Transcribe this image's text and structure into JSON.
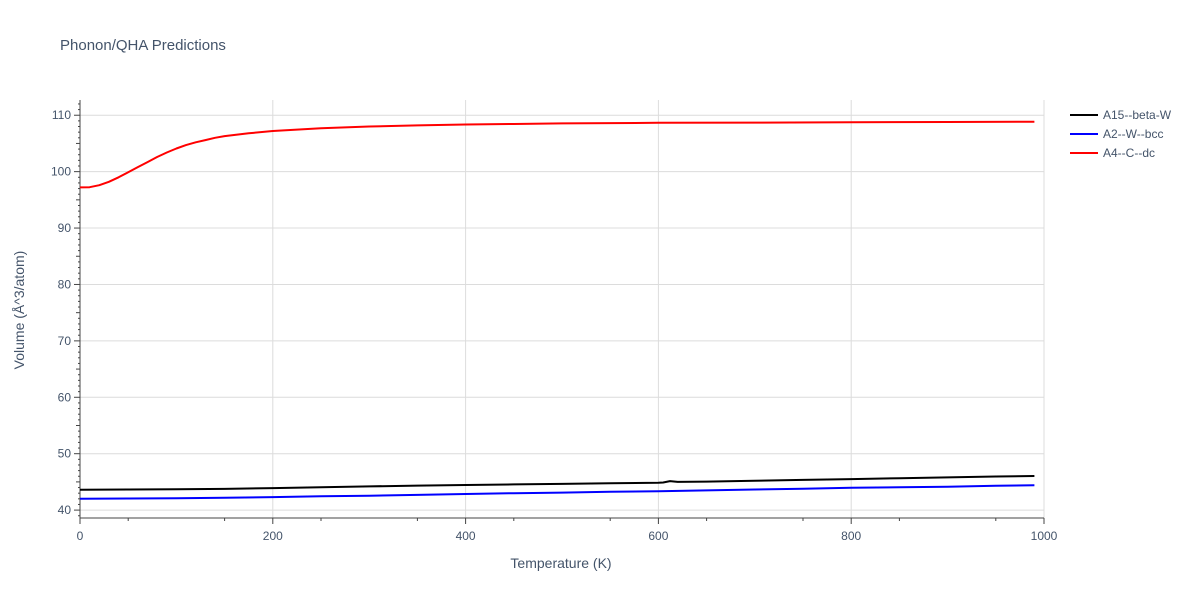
{
  "chart_data": {
    "type": "line",
    "title": "Phonon/QHA Predictions",
    "xlabel": "Temperature (K)",
    "ylabel": "Volume (Å^3/atom)",
    "xlim": [
      0,
      1000
    ],
    "ylim": [
      38.6,
      112.7
    ],
    "xticks": [
      0,
      200,
      400,
      600,
      800,
      1000
    ],
    "yticks": [
      40,
      50,
      60,
      70,
      80,
      90,
      100,
      110
    ],
    "grid": true,
    "legend_position": "top-right",
    "series": [
      {
        "name": "A15--beta-W",
        "color": "#000000",
        "x": [
          0,
          50,
          100,
          150,
          200,
          250,
          300,
          350,
          400,
          450,
          500,
          550,
          600,
          605,
          612,
          620,
          650,
          700,
          750,
          800,
          850,
          900,
          950,
          990
        ],
        "y": [
          43.6,
          43.65,
          43.7,
          43.75,
          43.9,
          44.05,
          44.2,
          44.35,
          44.45,
          44.55,
          44.65,
          44.75,
          44.85,
          44.9,
          45.15,
          45.0,
          45.05,
          45.2,
          45.35,
          45.5,
          45.65,
          45.8,
          45.95,
          46.05
        ]
      },
      {
        "name": "A2--W--bcc",
        "color": "#0000ff",
        "x": [
          0,
          50,
          100,
          150,
          200,
          250,
          300,
          350,
          400,
          450,
          500,
          550,
          600,
          650,
          700,
          750,
          800,
          850,
          900,
          950,
          990
        ],
        "y": [
          42.0,
          42.05,
          42.1,
          42.2,
          42.3,
          42.45,
          42.55,
          42.7,
          42.85,
          43.0,
          43.1,
          43.25,
          43.35,
          43.5,
          43.65,
          43.8,
          43.95,
          44.05,
          44.15,
          44.3,
          44.4
        ]
      },
      {
        "name": "A4--C--dc",
        "color": "#ff0000",
        "x": [
          0,
          10,
          20,
          30,
          40,
          50,
          60,
          70,
          80,
          90,
          100,
          110,
          120,
          130,
          140,
          150,
          175,
          200,
          250,
          300,
          350,
          400,
          450,
          500,
          600,
          700,
          800,
          900,
          990
        ],
        "y": [
          97.2,
          97.25,
          97.6,
          98.2,
          99.0,
          99.9,
          100.8,
          101.7,
          102.6,
          103.4,
          104.1,
          104.7,
          105.2,
          105.6,
          106.0,
          106.3,
          106.8,
          107.2,
          107.7,
          108.0,
          108.2,
          108.35,
          108.45,
          108.55,
          108.65,
          108.7,
          108.75,
          108.8,
          108.85
        ]
      }
    ]
  }
}
